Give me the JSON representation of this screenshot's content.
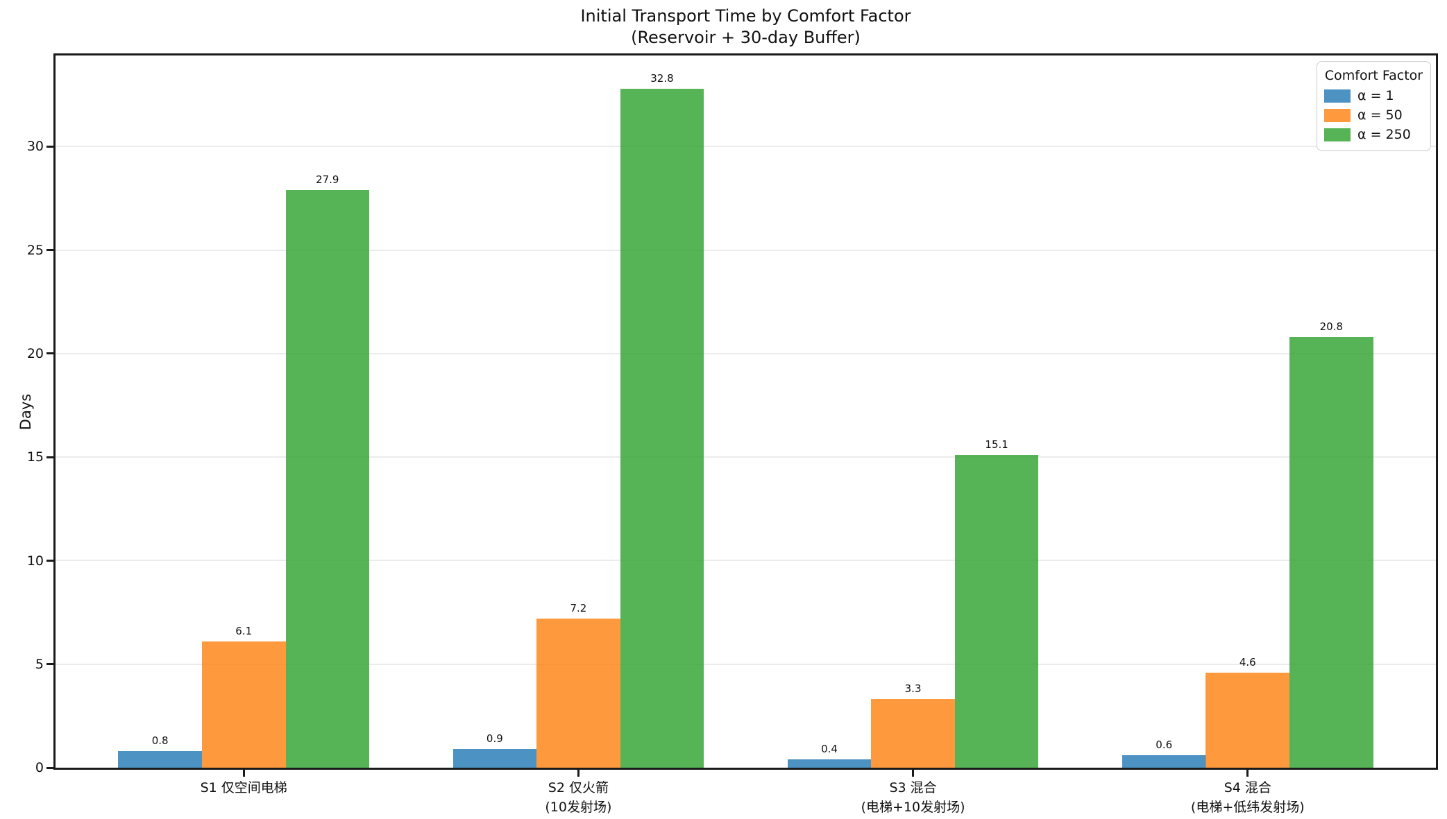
{
  "figure": {
    "title": "Initial Transport Time by Comfort Factor",
    "subtitle": "(Reservoir + 30-day Buffer)"
  },
  "chart_data": {
    "type": "bar",
    "title": "Initial Transport Time by Comfort Factor",
    "subtitle": "(Reservoir + 30-day Buffer)",
    "xlabel": "",
    "ylabel": "Days",
    "ylim": [
      0,
      34.4
    ],
    "yticks": [
      0,
      5,
      10,
      15,
      20,
      25,
      30
    ],
    "grid": true,
    "grid_color": "#ebebeb",
    "axis_color": "#1a1a1a",
    "bar_alpha": 0.8,
    "bar_width_units": 0.25,
    "categories": [
      {
        "lines": [
          "S1 仅空间电梯"
        ]
      },
      {
        "lines": [
          "S2 仅火箭",
          "(10发射场)"
        ]
      },
      {
        "lines": [
          "S3 混合",
          "(电梯+10发射场)"
        ]
      },
      {
        "lines": [
          "S4 混合",
          "(电梯+低纬发射场)"
        ]
      }
    ],
    "series": [
      {
        "name": "α = 1",
        "color": "#1f77b4",
        "values": [
          0.8,
          0.9,
          0.4,
          0.6
        ]
      },
      {
        "name": "α = 50",
        "color": "#ff7f0e",
        "values": [
          6.1,
          7.2,
          3.3,
          4.6
        ]
      },
      {
        "name": "α = 250",
        "color": "#2ca02c",
        "values": [
          27.9,
          32.8,
          15.1,
          20.8
        ]
      }
    ],
    "value_label_decimals": 1,
    "legend": {
      "title": "Comfort Factor",
      "position": "upper right"
    }
  }
}
